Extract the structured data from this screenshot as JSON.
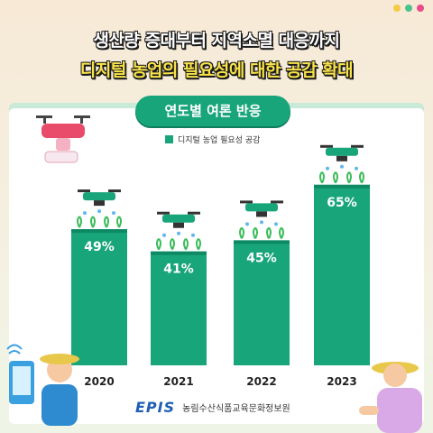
{
  "header": {
    "line1": "생산량 증대부터 지역소멸 대응까지",
    "line2": "디지털 농업의 필요성에 대한 공감 확대"
  },
  "window_dots": [
    "#f7c948",
    "#4bc38d",
    "#e94b8a"
  ],
  "panel_title": "연도별 여론 반응",
  "colors": {
    "bar": "#19a57a",
    "bar_dark": "#0e8a63",
    "accent": "#f7e24a"
  },
  "chart_data": {
    "type": "bar",
    "title": "연도별 여론 반응",
    "categories": [
      "2020",
      "2021",
      "2022",
      "2023"
    ],
    "series": [
      {
        "name": "디지털 농업 필요성 공감",
        "values": [
          49,
          41,
          45,
          65
        ]
      }
    ],
    "value_labels": [
      "49%",
      "41%",
      "45%",
      "65%"
    ],
    "ylim": [
      0,
      100
    ],
    "grid": false,
    "legend": "top-center"
  },
  "footer": {
    "logo": "EPIS",
    "org": "농림수산식품교육문화정보원"
  }
}
